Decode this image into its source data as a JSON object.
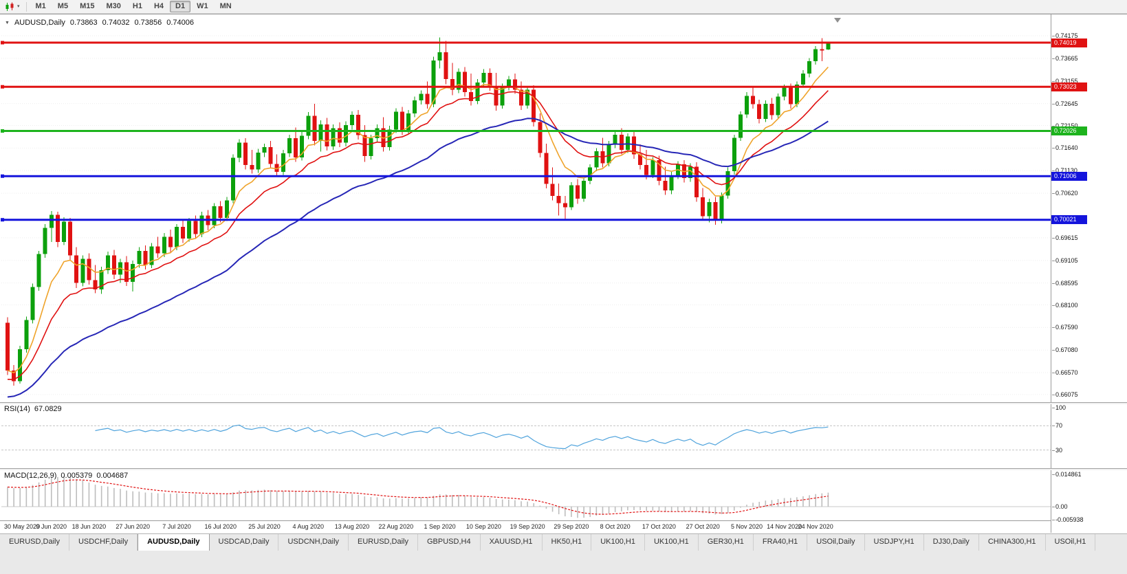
{
  "toolbar": {
    "timeframes": [
      "M1",
      "M5",
      "M15",
      "M30",
      "H1",
      "H4",
      "D1",
      "W1",
      "MN"
    ],
    "active_timeframe": "D1"
  },
  "chart_header": {
    "symbol": "AUDUSD,Daily",
    "open": "0.73863",
    "high": "0.74032",
    "low": "0.73856",
    "close": "0.74006"
  },
  "price_scale": {
    "ticks": [
      "0.74175",
      "0.73665",
      "0.73155",
      "0.72645",
      "0.72150",
      "0.71640",
      "0.71130",
      "0.70620",
      "0.69615",
      "0.69105",
      "0.68595",
      "0.68100",
      "0.67590",
      "0.67080",
      "0.66570",
      "0.66075"
    ]
  },
  "hlines": [
    {
      "price": 0.74019,
      "label": "0.74019",
      "color": "#e01212"
    },
    {
      "price": 0.73023,
      "label": "0.73023",
      "color": "#e01212"
    },
    {
      "price": 0.72026,
      "label": "0.72026",
      "color": "#1db31d"
    },
    {
      "price": 0.71006,
      "label": "0.71006",
      "color": "#1414dc"
    },
    {
      "price": 0.70021,
      "label": "0.70021",
      "color": "#1414dc"
    }
  ],
  "indicators": {
    "rsi": {
      "name": "RSI(14)",
      "value": "67.0829",
      "levels": [
        "100",
        "70",
        "30"
      ],
      "line_color": "#4fa3dc"
    },
    "macd": {
      "name": "MACD(12,26,9)",
      "value_main": "0.005379",
      "value_signal": "0.004687",
      "scale_top": "0.014861",
      "scale_zero": "0.00",
      "scale_bottom": "-0.005938",
      "hist_color": "#bdbdbd",
      "signal_color": "#e01212"
    }
  },
  "x_axis": {
    "labels": [
      "30 May 2020",
      "9 Jun 2020",
      "18 Jun 2020",
      "27 Jun 2020",
      "7 Jul 2020",
      "16 Jul 2020",
      "25 Jul 2020",
      "4 Aug 2020",
      "13 Aug 2020",
      "22 Aug 2020",
      "1 Sep 2020",
      "10 Sep 2020",
      "19 Sep 2020",
      "29 Sep 2020",
      "8 Oct 2020",
      "17 Oct 2020",
      "27 Oct 2020",
      "5 Nov 2020",
      "14 Nov 2020",
      "24 Nov 2020"
    ]
  },
  "tabs": {
    "active_index": 2,
    "items": [
      "EURUSD,Daily",
      "USDCHF,Daily",
      "AUDUSD,Daily",
      "USDCAD,Daily",
      "USDCNH,Daily",
      "EURUSD,Daily",
      "GBPUSD,H4",
      "XAUUSD,H1",
      "HK50,H1",
      "UK100,H1",
      "UK100,H1",
      "GER30,H1",
      "FRA40,H1",
      "USOil,Daily",
      "USDJPY,H1",
      "DJ30,Daily",
      "CHINA300,H1",
      "USOil,H1"
    ]
  },
  "chart_data": {
    "type": "candlestick",
    "symbol": "AUDUSD",
    "timeframe": "Daily",
    "up_color": "#0ca00c",
    "down_color": "#e01212",
    "ylim": [
      0.66075,
      0.74175
    ],
    "ma_lines": [
      {
        "name": "fast-ma",
        "period": 8,
        "color": "#efa32a"
      },
      {
        "name": "medium-ma",
        "period": 16,
        "color": "#e01010"
      },
      {
        "name": "slow-ma",
        "period": 40,
        "color": "#2626b6"
      }
    ],
    "x_label_bars": [
      0,
      7,
      13,
      20,
      27,
      34,
      41,
      48,
      55,
      62,
      69,
      76,
      83,
      90,
      97,
      104,
      111,
      118,
      124,
      129
    ],
    "candles": [
      [
        0.677,
        0.6782,
        0.6652,
        0.6662
      ],
      [
        0.6662,
        0.6674,
        0.6628,
        0.6638
      ],
      [
        0.6638,
        0.6718,
        0.6632,
        0.671
      ],
      [
        0.671,
        0.6784,
        0.6702,
        0.6776
      ],
      [
        0.6776,
        0.6858,
        0.6768,
        0.685
      ],
      [
        0.685,
        0.6932,
        0.6842,
        0.6925
      ],
      [
        0.6925,
        0.6992,
        0.6916,
        0.6984
      ],
      [
        0.6984,
        0.7022,
        0.6952,
        0.7013
      ],
      [
        0.7013,
        0.702,
        0.694,
        0.6952
      ],
      [
        0.6952,
        0.7008,
        0.6945,
        0.6998
      ],
      [
        0.6998,
        0.7006,
        0.691,
        0.6922
      ],
      [
        0.6922,
        0.694,
        0.6848,
        0.686
      ],
      [
        0.686,
        0.6922,
        0.6852,
        0.6914
      ],
      [
        0.6914,
        0.6926,
        0.6856,
        0.6866
      ],
      [
        0.6866,
        0.69,
        0.6836,
        0.6845
      ],
      [
        0.6845,
        0.6896,
        0.6835,
        0.6888
      ],
      [
        0.6888,
        0.693,
        0.688,
        0.6922
      ],
      [
        0.6922,
        0.6934,
        0.6868,
        0.6878
      ],
      [
        0.6878,
        0.6914,
        0.686,
        0.6906
      ],
      [
        0.6906,
        0.692,
        0.6853,
        0.6862
      ],
      [
        0.6862,
        0.691,
        0.684,
        0.6902
      ],
      [
        0.6902,
        0.694,
        0.6894,
        0.6932
      ],
      [
        0.6932,
        0.6944,
        0.689,
        0.69
      ],
      [
        0.69,
        0.695,
        0.6893,
        0.6942
      ],
      [
        0.6942,
        0.6964,
        0.6916,
        0.6926
      ],
      [
        0.6926,
        0.6972,
        0.6918,
        0.6964
      ],
      [
        0.6964,
        0.698,
        0.6928,
        0.694
      ],
      [
        0.694,
        0.6992,
        0.6933,
        0.6986
      ],
      [
        0.6986,
        0.7002,
        0.695,
        0.696
      ],
      [
        0.696,
        0.7006,
        0.6953,
        0.6999
      ],
      [
        0.6999,
        0.7012,
        0.696,
        0.697
      ],
      [
        0.697,
        0.702,
        0.6963,
        0.7012
      ],
      [
        0.7012,
        0.7024,
        0.6978,
        0.699
      ],
      [
        0.699,
        0.704,
        0.6983,
        0.7033
      ],
      [
        0.7033,
        0.7044,
        0.6996,
        0.7006
      ],
      [
        0.7006,
        0.7054,
        0.6999,
        0.7046
      ],
      [
        0.7046,
        0.715,
        0.704,
        0.7142
      ],
      [
        0.7142,
        0.7184,
        0.7132,
        0.7176
      ],
      [
        0.7176,
        0.7186,
        0.7116,
        0.7126
      ],
      [
        0.7126,
        0.716,
        0.7106,
        0.7116
      ],
      [
        0.7116,
        0.7162,
        0.7108,
        0.7154
      ],
      [
        0.7154,
        0.7174,
        0.7144,
        0.7166
      ],
      [
        0.7166,
        0.718,
        0.7118,
        0.7128
      ],
      [
        0.7128,
        0.715,
        0.71,
        0.711
      ],
      [
        0.711,
        0.716,
        0.7103,
        0.7152
      ],
      [
        0.7152,
        0.7194,
        0.7144,
        0.7186
      ],
      [
        0.7186,
        0.721,
        0.7133,
        0.7143
      ],
      [
        0.7143,
        0.72,
        0.7136,
        0.7192
      ],
      [
        0.7192,
        0.7245,
        0.7184,
        0.7237
      ],
      [
        0.7237,
        0.7264,
        0.717,
        0.718
      ],
      [
        0.718,
        0.7227,
        0.7156,
        0.7217
      ],
      [
        0.7217,
        0.7232,
        0.7158,
        0.7168
      ],
      [
        0.7168,
        0.7217,
        0.716,
        0.7209
      ],
      [
        0.7209,
        0.7222,
        0.7166,
        0.7176
      ],
      [
        0.7176,
        0.7224,
        0.7168,
        0.7216
      ],
      [
        0.7216,
        0.7247,
        0.7206,
        0.7239
      ],
      [
        0.7239,
        0.725,
        0.7183,
        0.7193
      ],
      [
        0.7193,
        0.7216,
        0.7133,
        0.7146
      ],
      [
        0.7146,
        0.7194,
        0.7138,
        0.7186
      ],
      [
        0.7186,
        0.7217,
        0.7178,
        0.7209
      ],
      [
        0.7209,
        0.7234,
        0.7156,
        0.7166
      ],
      [
        0.7166,
        0.7214,
        0.7158,
        0.7206
      ],
      [
        0.7206,
        0.7254,
        0.7198,
        0.7246
      ],
      [
        0.7246,
        0.7257,
        0.7193,
        0.7203
      ],
      [
        0.7203,
        0.725,
        0.7196,
        0.7242
      ],
      [
        0.7242,
        0.728,
        0.7234,
        0.7272
      ],
      [
        0.7272,
        0.7294,
        0.7262,
        0.7286
      ],
      [
        0.7286,
        0.7314,
        0.7253,
        0.7263
      ],
      [
        0.7263,
        0.737,
        0.7256,
        0.7362
      ],
      [
        0.7362,
        0.7414,
        0.7344,
        0.738
      ],
      [
        0.738,
        0.7406,
        0.7308,
        0.732
      ],
      [
        0.732,
        0.7356,
        0.7283,
        0.7296
      ],
      [
        0.7296,
        0.7344,
        0.7288,
        0.7336
      ],
      [
        0.7336,
        0.7347,
        0.728,
        0.729
      ],
      [
        0.729,
        0.7332,
        0.726,
        0.727
      ],
      [
        0.727,
        0.732,
        0.7263,
        0.7312
      ],
      [
        0.7312,
        0.7342,
        0.7304,
        0.7334
      ],
      [
        0.7334,
        0.7344,
        0.7293,
        0.7303
      ],
      [
        0.7303,
        0.7334,
        0.7248,
        0.726
      ],
      [
        0.726,
        0.731,
        0.7253,
        0.7302
      ],
      [
        0.7302,
        0.7327,
        0.7294,
        0.7319
      ],
      [
        0.7319,
        0.7332,
        0.7286,
        0.7296
      ],
      [
        0.7296,
        0.7314,
        0.725,
        0.726
      ],
      [
        0.726,
        0.7304,
        0.7253,
        0.7296
      ],
      [
        0.7296,
        0.7306,
        0.7213,
        0.7223
      ],
      [
        0.7223,
        0.7242,
        0.7143,
        0.7153
      ],
      [
        0.7153,
        0.7174,
        0.7073,
        0.7083
      ],
      [
        0.7083,
        0.712,
        0.7046,
        0.7056
      ],
      [
        0.7056,
        0.7084,
        0.7012,
        0.704
      ],
      [
        0.704,
        0.7056,
        0.7004,
        0.703
      ],
      [
        0.703,
        0.7087,
        0.7024,
        0.708
      ],
      [
        0.708,
        0.7094,
        0.7038,
        0.705
      ],
      [
        0.705,
        0.7097,
        0.7043,
        0.709
      ],
      [
        0.709,
        0.7127,
        0.7082,
        0.712
      ],
      [
        0.712,
        0.7164,
        0.7112,
        0.7157
      ],
      [
        0.7157,
        0.7187,
        0.712,
        0.713
      ],
      [
        0.713,
        0.718,
        0.7123,
        0.7172
      ],
      [
        0.7172,
        0.72,
        0.7164,
        0.7194
      ],
      [
        0.7194,
        0.7209,
        0.715,
        0.716
      ],
      [
        0.716,
        0.7197,
        0.7153,
        0.719
      ],
      [
        0.719,
        0.72,
        0.714,
        0.715
      ],
      [
        0.715,
        0.7172,
        0.7116,
        0.7126
      ],
      [
        0.7126,
        0.716,
        0.7093,
        0.7103
      ],
      [
        0.7103,
        0.7144,
        0.7096,
        0.7137
      ],
      [
        0.7137,
        0.7147,
        0.708,
        0.709
      ],
      [
        0.709,
        0.7122,
        0.7058,
        0.7068
      ],
      [
        0.7068,
        0.711,
        0.706,
        0.7102
      ],
      [
        0.7102,
        0.7134,
        0.7094,
        0.7127
      ],
      [
        0.7127,
        0.7137,
        0.7086,
        0.7096
      ],
      [
        0.7096,
        0.713,
        0.7088,
        0.7122
      ],
      [
        0.7122,
        0.7132,
        0.7043,
        0.7053
      ],
      [
        0.7053,
        0.7074,
        0.7,
        0.701
      ],
      [
        0.701,
        0.705,
        0.6996,
        0.7042
      ],
      [
        0.7042,
        0.7054,
        0.6991,
        0.7001
      ],
      [
        0.7001,
        0.7064,
        0.6994,
        0.7057
      ],
      [
        0.7057,
        0.712,
        0.705,
        0.7112
      ],
      [
        0.7112,
        0.7194,
        0.7104,
        0.7187
      ],
      [
        0.7187,
        0.7247,
        0.718,
        0.724
      ],
      [
        0.724,
        0.729,
        0.7232,
        0.7282
      ],
      [
        0.7282,
        0.7304,
        0.7253,
        0.7263
      ],
      [
        0.7263,
        0.7273,
        0.722,
        0.723
      ],
      [
        0.723,
        0.7272,
        0.7223,
        0.7264
      ],
      [
        0.7264,
        0.7277,
        0.7228,
        0.7238
      ],
      [
        0.7238,
        0.7287,
        0.7232,
        0.728
      ],
      [
        0.728,
        0.7307,
        0.7272,
        0.73
      ],
      [
        0.73,
        0.731,
        0.7253,
        0.7263
      ],
      [
        0.7263,
        0.7314,
        0.7256,
        0.7307
      ],
      [
        0.7307,
        0.734,
        0.73,
        0.7332
      ],
      [
        0.7332,
        0.7367,
        0.7324,
        0.736
      ],
      [
        0.736,
        0.7394,
        0.7352,
        0.7387
      ],
      [
        0.7387,
        0.7412,
        0.736,
        0.7384
      ],
      [
        0.73863,
        0.74032,
        0.73856,
        0.74006
      ]
    ]
  }
}
